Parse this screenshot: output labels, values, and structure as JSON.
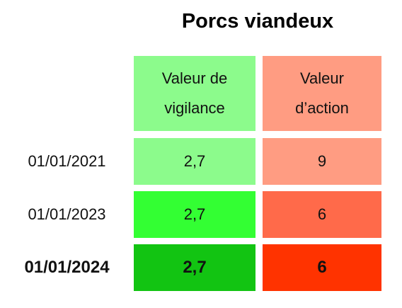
{
  "title": "Porcs viandeux",
  "table": {
    "header": [
      "Valeur de\nvigilance",
      "Valeur\nd’action"
    ],
    "rows": [
      [
        "01/01/2021",
        "2,7",
        "9"
      ],
      [
        "01/01/2023",
        "2,7",
        "6"
      ],
      [
        "01/01/2024",
        "2,7",
        "6"
      ]
    ]
  }
}
